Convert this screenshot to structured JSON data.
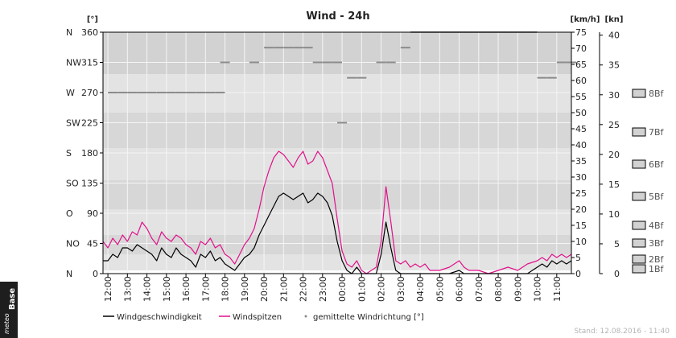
{
  "chart_data": {
    "type": "line",
    "title": "Wind - 24h",
    "left_axis": {
      "unit": "[°]",
      "range": [
        0,
        360
      ],
      "ticks": [
        0,
        45,
        90,
        135,
        180,
        225,
        270,
        315,
        360
      ],
      "directions": [
        "N",
        "NO",
        "O",
        "SO",
        "S",
        "SW",
        "W",
        "NW",
        "N"
      ]
    },
    "speed_axis": {
      "unit": "[km/h]",
      "range": [
        0,
        75
      ],
      "ticks": [
        0,
        5,
        10,
        15,
        20,
        25,
        30,
        35,
        40,
        45,
        50,
        55,
        60,
        65,
        70,
        75
      ]
    },
    "knots_axis": {
      "unit": "[kn]",
      "range": [
        0,
        40.5
      ],
      "ticks": [
        0,
        5,
        10,
        15,
        20,
        25,
        30,
        35,
        40
      ]
    },
    "beaufort": [
      "1Bf",
      "2Bf",
      "3Bf",
      "4Bf",
      "5Bf",
      "6Bf",
      "7Bf",
      "8Bf"
    ],
    "beaufort_kmh": [
      1.5,
      4.5,
      9.5,
      15,
      24,
      34,
      44,
      56
    ],
    "beaufort_bands_kmh": [
      1,
      6,
      12,
      20,
      29,
      39,
      50,
      62
    ],
    "x_ticks": [
      "12:00",
      "13:00",
      "14:00",
      "15:00",
      "16:00",
      "17:00",
      "18:00",
      "19:00",
      "20:00",
      "21:00",
      "22:00",
      "23:00",
      "00:00",
      "01:00",
      "02:00",
      "03:00",
      "04:00",
      "05:00",
      "06:00",
      "07:00",
      "08:00",
      "09:00",
      "10:00",
      "11:00"
    ],
    "x_start_hour": 11.75,
    "x_end_hour": 35.75,
    "series": [
      {
        "name": "Windgeschwindigkeit",
        "color": "#000000",
        "points": [
          [
            11.75,
            4
          ],
          [
            12.0,
            4
          ],
          [
            12.25,
            6
          ],
          [
            12.5,
            5
          ],
          [
            12.75,
            8
          ],
          [
            13.0,
            8
          ],
          [
            13.25,
            7
          ],
          [
            13.5,
            9
          ],
          [
            13.75,
            8
          ],
          [
            14.0,
            7
          ],
          [
            14.25,
            6
          ],
          [
            14.5,
            4
          ],
          [
            14.75,
            8
          ],
          [
            15.0,
            6
          ],
          [
            15.25,
            5
          ],
          [
            15.5,
            8
          ],
          [
            15.75,
            6
          ],
          [
            16.0,
            5
          ],
          [
            16.25,
            4
          ],
          [
            16.5,
            2
          ],
          [
            16.75,
            6
          ],
          [
            17.0,
            5
          ],
          [
            17.25,
            7
          ],
          [
            17.5,
            4
          ],
          [
            17.75,
            5
          ],
          [
            18.0,
            3
          ],
          [
            18.25,
            2
          ],
          [
            18.5,
            1
          ],
          [
            18.75,
            3
          ],
          [
            19.0,
            5
          ],
          [
            19.25,
            6
          ],
          [
            19.5,
            8
          ],
          [
            19.75,
            12
          ],
          [
            20.0,
            15
          ],
          [
            20.25,
            18
          ],
          [
            20.5,
            21
          ],
          [
            20.75,
            24
          ],
          [
            21.0,
            25
          ],
          [
            21.25,
            24
          ],
          [
            21.5,
            23
          ],
          [
            21.75,
            24
          ],
          [
            22.0,
            25
          ],
          [
            22.25,
            22
          ],
          [
            22.5,
            23
          ],
          [
            22.75,
            25
          ],
          [
            23.0,
            24
          ],
          [
            23.25,
            22
          ],
          [
            23.5,
            18
          ],
          [
            23.75,
            10
          ],
          [
            24.0,
            4
          ],
          [
            24.25,
            1
          ],
          [
            24.5,
            0
          ],
          [
            24.75,
            2
          ],
          [
            25.0,
            0
          ],
          [
            25.25,
            0
          ],
          [
            25.5,
            0
          ],
          [
            25.75,
            0
          ],
          [
            26.0,
            6
          ],
          [
            26.25,
            16
          ],
          [
            26.5,
            8
          ],
          [
            26.75,
            1
          ],
          [
            27.0,
            0
          ],
          [
            27.5,
            0
          ],
          [
            28.0,
            0
          ],
          [
            28.5,
            0
          ],
          [
            29.0,
            0
          ],
          [
            29.5,
            0
          ],
          [
            30.0,
            1
          ],
          [
            30.25,
            0
          ],
          [
            30.5,
            0
          ],
          [
            31.0,
            0
          ],
          [
            31.5,
            0
          ],
          [
            32.0,
            0
          ],
          [
            32.5,
            0
          ],
          [
            33.0,
            0
          ],
          [
            33.5,
            0
          ],
          [
            34.0,
            2
          ],
          [
            34.25,
            3
          ],
          [
            34.5,
            2
          ],
          [
            34.75,
            4
          ],
          [
            35.0,
            3
          ],
          [
            35.25,
            4
          ],
          [
            35.5,
            3
          ],
          [
            35.75,
            4
          ]
        ]
      },
      {
        "name": "Windspitzen",
        "color": "#e0118a",
        "points": [
          [
            11.75,
            10
          ],
          [
            12.0,
            8
          ],
          [
            12.25,
            11
          ],
          [
            12.5,
            9
          ],
          [
            12.75,
            12
          ],
          [
            13.0,
            10
          ],
          [
            13.25,
            13
          ],
          [
            13.5,
            12
          ],
          [
            13.75,
            16
          ],
          [
            14.0,
            14
          ],
          [
            14.25,
            11
          ],
          [
            14.5,
            9
          ],
          [
            14.75,
            13
          ],
          [
            15.0,
            11
          ],
          [
            15.25,
            10
          ],
          [
            15.5,
            12
          ],
          [
            15.75,
            11
          ],
          [
            16.0,
            9
          ],
          [
            16.25,
            8
          ],
          [
            16.5,
            6
          ],
          [
            16.75,
            10
          ],
          [
            17.0,
            9
          ],
          [
            17.25,
            11
          ],
          [
            17.5,
            8
          ],
          [
            17.75,
            9
          ],
          [
            18.0,
            6
          ],
          [
            18.25,
            5
          ],
          [
            18.5,
            3
          ],
          [
            18.75,
            6
          ],
          [
            19.0,
            9
          ],
          [
            19.25,
            11
          ],
          [
            19.5,
            14
          ],
          [
            19.75,
            20
          ],
          [
            20.0,
            27
          ],
          [
            20.25,
            32
          ],
          [
            20.5,
            36
          ],
          [
            20.75,
            38
          ],
          [
            21.0,
            37
          ],
          [
            21.25,
            35
          ],
          [
            21.5,
            33
          ],
          [
            21.75,
            36
          ],
          [
            22.0,
            38
          ],
          [
            22.25,
            34
          ],
          [
            22.5,
            35
          ],
          [
            22.75,
            38
          ],
          [
            23.0,
            36
          ],
          [
            23.25,
            32
          ],
          [
            23.5,
            28
          ],
          [
            23.75,
            17
          ],
          [
            24.0,
            7
          ],
          [
            24.25,
            3
          ],
          [
            24.5,
            2
          ],
          [
            24.75,
            4
          ],
          [
            25.0,
            1
          ],
          [
            25.25,
            0
          ],
          [
            25.5,
            1
          ],
          [
            25.75,
            2
          ],
          [
            26.0,
            10
          ],
          [
            26.25,
            27
          ],
          [
            26.5,
            16
          ],
          [
            26.75,
            4
          ],
          [
            27.0,
            3
          ],
          [
            27.25,
            4
          ],
          [
            27.5,
            2
          ],
          [
            27.75,
            3
          ],
          [
            28.0,
            2
          ],
          [
            28.25,
            3
          ],
          [
            28.5,
            1
          ],
          [
            29.0,
            1
          ],
          [
            29.5,
            2
          ],
          [
            30.0,
            4
          ],
          [
            30.25,
            2
          ],
          [
            30.5,
            1
          ],
          [
            31.0,
            1
          ],
          [
            31.5,
            0
          ],
          [
            32.0,
            1
          ],
          [
            32.5,
            2
          ],
          [
            33.0,
            1
          ],
          [
            33.5,
            3
          ],
          [
            34.0,
            4
          ],
          [
            34.25,
            5
          ],
          [
            34.5,
            4
          ],
          [
            34.75,
            6
          ],
          [
            35.0,
            5
          ],
          [
            35.25,
            6
          ],
          [
            35.5,
            5
          ],
          [
            35.75,
            6
          ]
        ]
      },
      {
        "name": "gemittelte Windrichtung [°]",
        "color": "#8c8c8c",
        "points": [
          [
            12.25,
            270
          ],
          [
            12.75,
            270
          ],
          [
            13.25,
            270
          ],
          [
            13.75,
            270
          ],
          [
            14.25,
            270
          ],
          [
            14.75,
            270
          ],
          [
            15.25,
            270
          ],
          [
            15.75,
            270
          ],
          [
            16.25,
            270
          ],
          [
            16.75,
            270
          ],
          [
            17.25,
            270
          ],
          [
            17.75,
            270
          ],
          [
            18.0,
            315
          ],
          [
            19.5,
            315
          ],
          [
            20.25,
            337
          ],
          [
            20.75,
            337
          ],
          [
            21.25,
            337
          ],
          [
            21.75,
            337
          ],
          [
            22.25,
            337
          ],
          [
            22.75,
            315
          ],
          [
            23.25,
            315
          ],
          [
            23.75,
            315
          ],
          [
            24.0,
            225
          ],
          [
            24.5,
            292
          ],
          [
            25.0,
            292
          ],
          [
            26.0,
            315
          ],
          [
            26.5,
            315
          ],
          [
            27.25,
            337
          ],
          [
            27.75,
            360
          ],
          [
            28.25,
            360
          ],
          [
            28.75,
            360
          ],
          [
            29.25,
            360
          ],
          [
            29.75,
            360
          ],
          [
            30.25,
            360
          ],
          [
            30.75,
            360
          ],
          [
            31.25,
            360
          ],
          [
            31.75,
            360
          ],
          [
            32.25,
            360
          ],
          [
            32.75,
            360
          ],
          [
            33.25,
            360
          ],
          [
            33.75,
            360
          ],
          [
            34.25,
            292
          ],
          [
            34.75,
            292
          ],
          [
            35.25,
            315
          ],
          [
            35.75,
            315
          ]
        ]
      }
    ],
    "legend": [
      "Windgeschwindigkeit",
      "Windspitzen",
      "gemittelte Windrichtung [°]"
    ],
    "grid": true,
    "colors": {
      "plot_bg": "#d2d2d2",
      "band_light": "#e3e3e3",
      "band_dark": "#d7d7d7",
      "grid": "#f5f5f5",
      "frame": "#000000"
    }
  },
  "footer": {
    "logo_text": "meteo",
    "logo_base": "Base",
    "timestamp": "Stand: 12.08.2016 - 11:40"
  }
}
